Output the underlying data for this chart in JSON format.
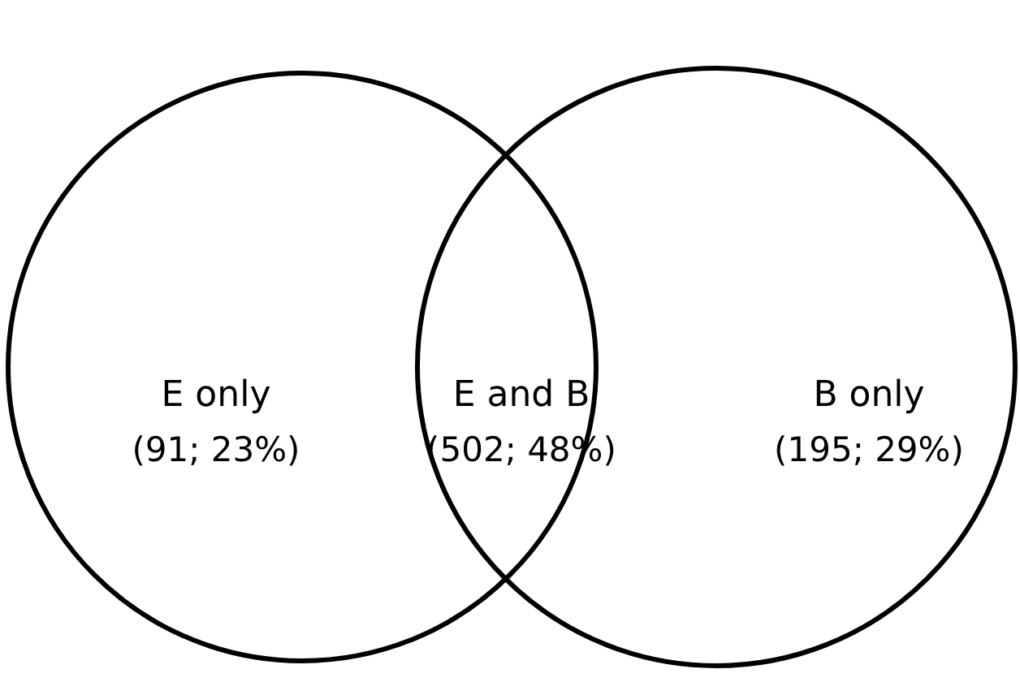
{
  "chart_data": {
    "type": "other",
    "categories": [
      "E only",
      "E and B",
      "B only"
    ],
    "values": [
      91,
      502,
      195
    ],
    "value_labels": [
      "(91; 23%)",
      "(502; 48%)",
      "(195; 29%)"
    ]
  }
}
